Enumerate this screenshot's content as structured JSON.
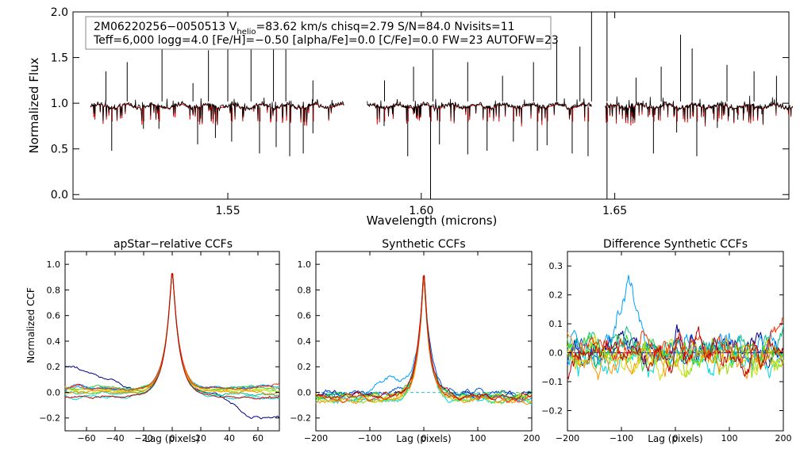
{
  "chart_data": [
    {
      "id": "spectrum",
      "type": "line",
      "title": "",
      "xlabel": "Wavelength (microns)",
      "ylabel": "Normalized Flux",
      "xlim": [
        1.51,
        1.695
      ],
      "ylim": [
        -0.05,
        2.0
      ],
      "xticks": [
        1.55,
        1.6,
        1.65
      ],
      "xtick_labels": [
        "1.55",
        "1.60",
        "1.65"
      ],
      "yticks": [
        0.0,
        0.5,
        1.0,
        1.5,
        2.0
      ],
      "ytick_labels": [
        "0.0",
        "0.5",
        "1.0",
        "1.5",
        "2.0"
      ],
      "chips": [
        [
          1.5145,
          1.58
        ],
        [
          1.586,
          1.644
        ],
        [
          1.6475,
          1.696
        ]
      ],
      "annotation": {
        "line1": "2M06220256−0050513  V",
        "line1_sub": "helio",
        "line1_rest": "=83.62 km/s  chisq=2.79  S/N=84.0  Nvisits=11",
        "line2": "Teff=6,000 logg=4.0 [Fe/H]=−0.50 [alpha/Fe]=0.0 [C/Fe]=0.0 FW=23 AUTOFW=23"
      },
      "series": [
        {
          "name": "observed",
          "color": "#000000"
        },
        {
          "name": "synthetic",
          "color": "#e00000"
        }
      ],
      "emission_spikes": [
        [
          1.5185,
          1.35
        ],
        [
          1.524,
          1.45
        ],
        [
          1.533,
          1.65
        ],
        [
          1.541,
          1.22
        ],
        [
          1.545,
          1.58
        ],
        [
          1.55,
          1.6
        ],
        [
          1.556,
          1.8
        ],
        [
          1.5618,
          1.62
        ],
        [
          1.565,
          1.95
        ],
        [
          1.572,
          1.25
        ],
        [
          1.5905,
          1.25
        ],
        [
          1.598,
          1.4
        ],
        [
          1.603,
          1.65
        ],
        [
          1.612,
          1.45
        ],
        [
          1.621,
          1.3
        ],
        [
          1.629,
          1.45
        ],
        [
          1.635,
          1.7
        ],
        [
          1.641,
          1.62
        ],
        [
          1.644,
          2.0
        ],
        [
          1.648,
          2.0
        ],
        [
          1.6555,
          1.28
        ],
        [
          1.662,
          1.4
        ],
        [
          1.667,
          1.75
        ],
        [
          1.67,
          1.6
        ],
        [
          1.679,
          1.42
        ],
        [
          1.686,
          1.35
        ],
        [
          1.6918,
          1.3
        ]
      ],
      "absorption_lines": [
        [
          1.52,
          0.48
        ],
        [
          1.5282,
          0.72
        ],
        [
          1.5322,
          0.72
        ],
        [
          1.5422,
          0.55
        ],
        [
          1.5468,
          0.62
        ],
        [
          1.551,
          0.58
        ],
        [
          1.5582,
          0.45
        ],
        [
          1.5625,
          0.52
        ],
        [
          1.566,
          0.42
        ],
        [
          1.5695,
          0.45
        ],
        [
          1.572,
          0.67
        ],
        [
          1.5904,
          0.75
        ],
        [
          1.5965,
          0.42
        ],
        [
          1.6024,
          -0.05
        ],
        [
          1.6047,
          0.55
        ],
        [
          1.612,
          0.44
        ],
        [
          1.617,
          0.48
        ],
        [
          1.6238,
          0.58
        ],
        [
          1.63,
          0.48
        ],
        [
          1.6325,
          0.54
        ],
        [
          1.639,
          0.45
        ],
        [
          1.6431,
          0.42
        ],
        [
          1.648,
          -0.05
        ],
        [
          1.66,
          0.45
        ],
        [
          1.666,
          0.68
        ],
        [
          1.6712,
          0.42
        ],
        [
          1.6765,
          0.73
        ],
        [
          1.6818,
          0.82
        ],
        [
          1.688,
          0.88
        ]
      ]
    },
    {
      "id": "apstar_ccf",
      "type": "line",
      "title": "apStar−relative CCFs",
      "xlabel": "Lag (pixels)",
      "ylabel": "Normalized CCF",
      "xlim": [
        -75,
        75
      ],
      "ylim": [
        -0.3,
        1.1
      ],
      "xticks": [
        -60,
        -40,
        -20,
        0,
        20,
        40,
        60
      ],
      "xtick_labels": [
        "−60",
        "−40",
        "−20",
        "0",
        "20",
        "40",
        "60"
      ],
      "yticks": [
        -0.2,
        0.0,
        0.2,
        0.4,
        0.6,
        0.8,
        1.0
      ],
      "ytick_labels": [
        "−0.2",
        "0.0",
        "0.2",
        "0.4",
        "0.6",
        "0.8",
        "1.0"
      ],
      "visits": 11
    },
    {
      "id": "synthetic_ccf",
      "type": "line",
      "title": "Synthetic CCFs",
      "xlabel": "Lag (pixels)",
      "ylabel": "",
      "xlim": [
        -200,
        200
      ],
      "ylim": [
        -0.3,
        1.1
      ],
      "xticks": [
        -200,
        -100,
        0,
        100,
        200
      ],
      "xtick_labels": [
        "−200",
        "−100",
        "0",
        "100",
        "200"
      ],
      "yticks": [
        -0.2,
        0.0,
        0.2,
        0.4,
        0.6,
        0.8,
        1.0
      ],
      "ytick_labels": [
        "−0.2",
        "0.0",
        "0.2",
        "0.4",
        "0.6",
        "0.8",
        "1.0"
      ],
      "visits": 11
    },
    {
      "id": "diff_ccf",
      "type": "line",
      "title": "Difference Synthetic CCFs",
      "xlabel": "Lag (pixels)",
      "ylabel": "",
      "xlim": [
        -200,
        200
      ],
      "ylim": [
        -0.27,
        0.35
      ],
      "xticks": [
        -200,
        -100,
        0,
        100,
        200
      ],
      "xtick_labels": [
        "−200",
        "−100",
        "0",
        "100",
        "200"
      ],
      "yticks": [
        -0.2,
        -0.1,
        0.0,
        0.1,
        0.2,
        0.3
      ],
      "ytick_labels": [
        "−0.2",
        "−0.1",
        "0.0",
        "0.1",
        "0.2",
        "0.3"
      ],
      "zero_line_color": "#0000cc",
      "visits": 11
    }
  ],
  "palette": [
    "#00008b",
    "#0050e0",
    "#00a0ff",
    "#00d8d8",
    "#00c080",
    "#30d030",
    "#90e000",
    "#d8d800",
    "#ff9000",
    "#ff3000",
    "#c00000"
  ]
}
